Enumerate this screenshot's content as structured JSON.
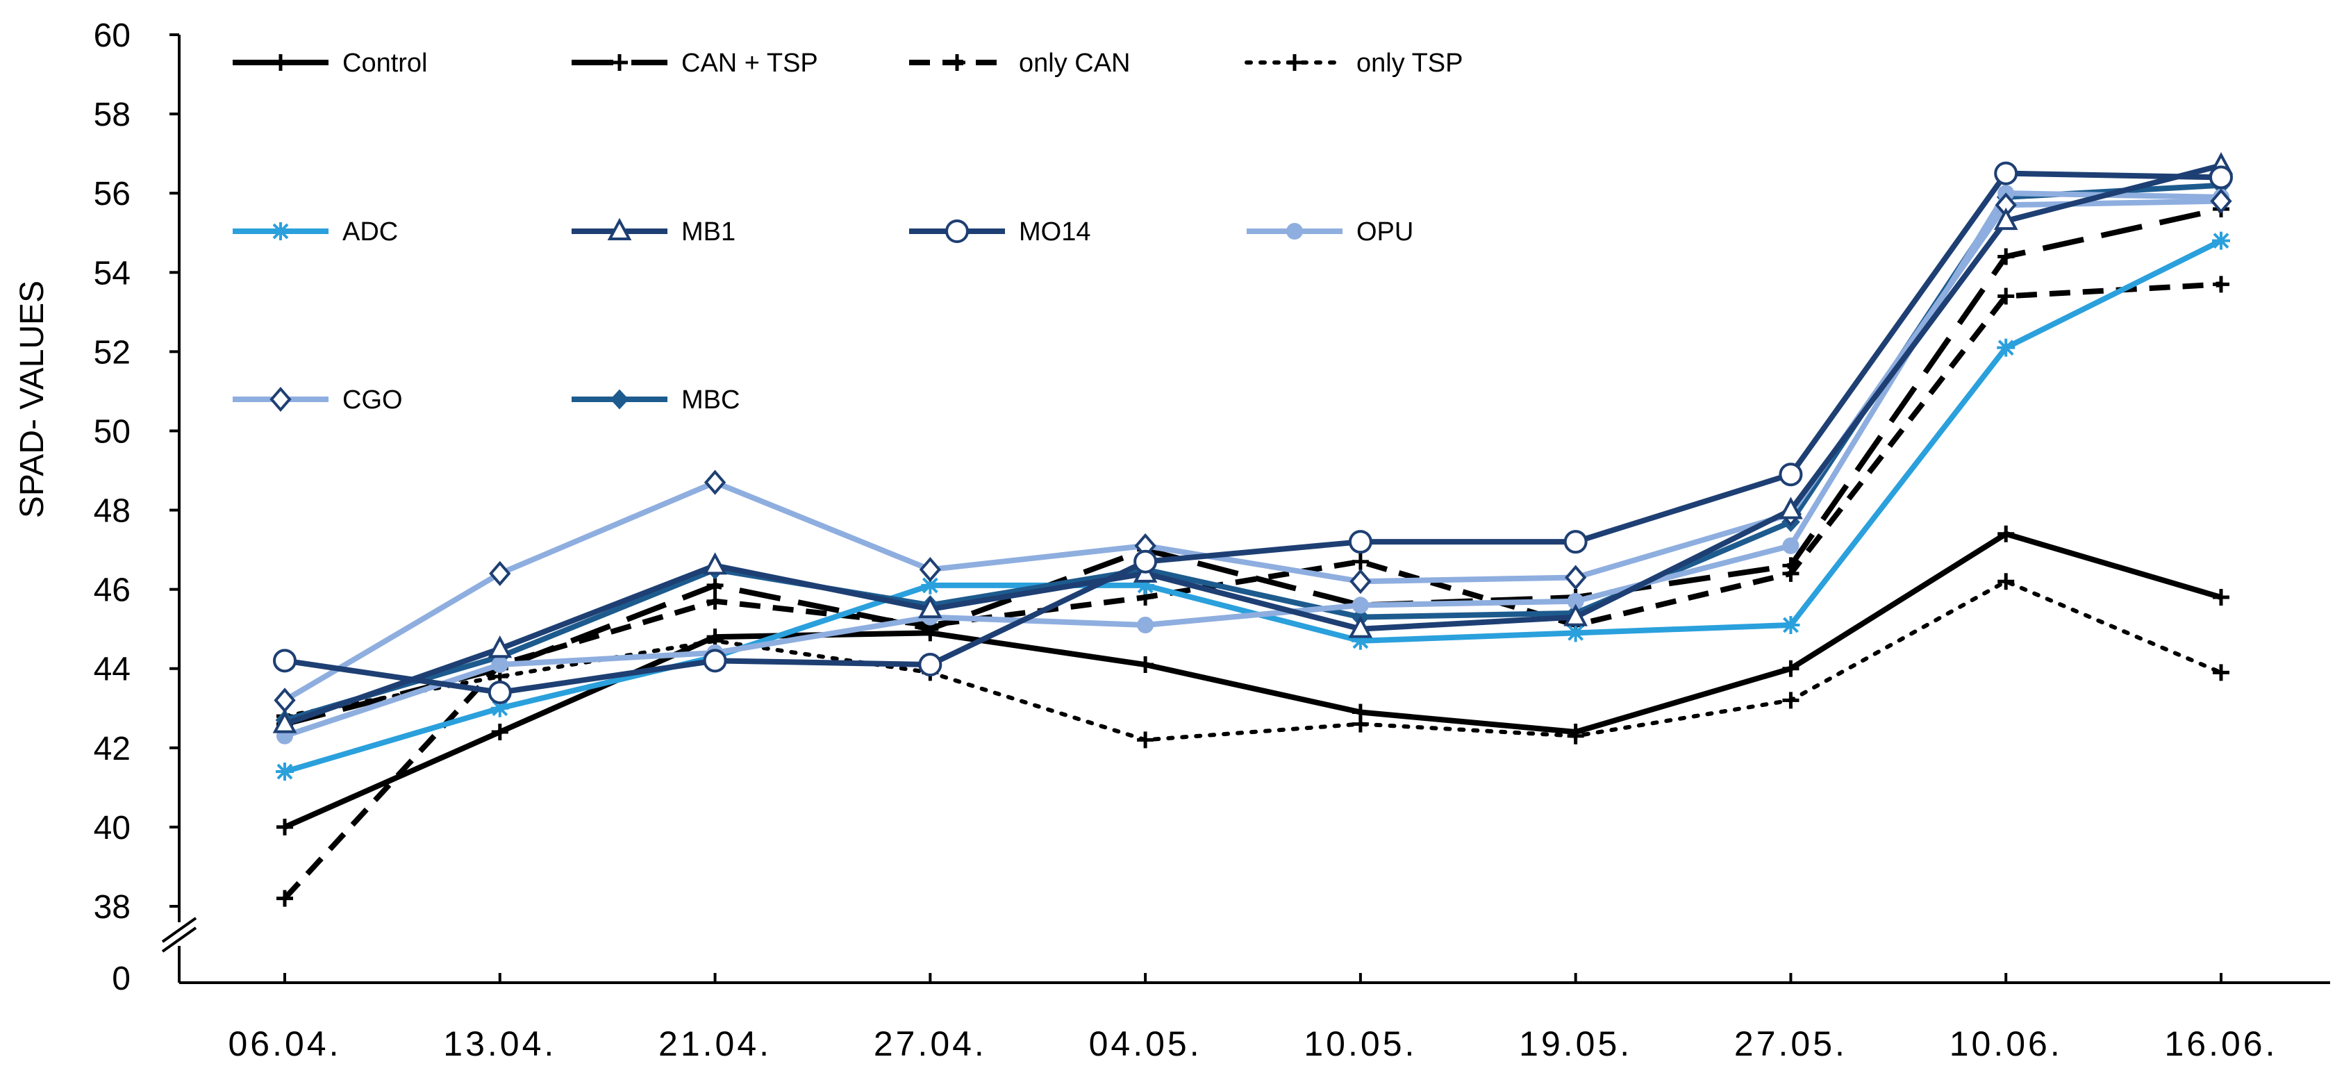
{
  "chart_data": {
    "type": "line",
    "title": "",
    "xlabel": "",
    "ylabel": "SPAD- VALUES",
    "ylim": [
      38,
      60
    ],
    "ytick_labels": [
      "60",
      "58",
      "56",
      "54",
      "52",
      "50",
      "48",
      "46",
      "44",
      "42",
      "40",
      "38",
      "0"
    ],
    "y_break": true,
    "grid": false,
    "legend_position": "top",
    "categories": [
      "06.04.",
      "13.04.",
      "21.04.",
      "27.04.",
      "04.05.",
      "10.05.",
      "19.05.",
      "27.05.",
      "10.06.",
      "16.06."
    ],
    "series": [
      {
        "name": "Control",
        "color": "#000000",
        "dash": "solid",
        "marker": "plus",
        "values": [
          40.0,
          42.4,
          44.8,
          44.9,
          44.1,
          42.9,
          42.4,
          44.0,
          47.4,
          45.8
        ]
      },
      {
        "name": "CAN + TSP",
        "color": "#000000",
        "dash": "longdash",
        "marker": "plus",
        "values": [
          42.6,
          44.0,
          46.1,
          45.0,
          47.0,
          45.6,
          45.8,
          46.6,
          54.4,
          55.6
        ]
      },
      {
        "name": "only CAN",
        "color": "#000000",
        "dash": "dash",
        "marker": "plus",
        "values": [
          38.2,
          44.1,
          45.7,
          45.1,
          45.8,
          46.7,
          45.1,
          46.4,
          53.4,
          53.7
        ]
      },
      {
        "name": "only TSP",
        "color": "#000000",
        "dash": "dot",
        "marker": "plus",
        "values": [
          42.8,
          43.8,
          44.7,
          43.9,
          42.2,
          42.6,
          42.3,
          43.2,
          46.2,
          43.9
        ]
      },
      {
        "name": "ADC",
        "color": "#2aa0dc",
        "dash": "solid",
        "marker": "asterisk",
        "values": [
          41.4,
          43.0,
          44.3,
          46.1,
          46.1,
          44.7,
          44.9,
          45.1,
          52.1,
          54.8
        ]
      },
      {
        "name": "MB1",
        "color": "#1e3f73",
        "dash": "solid",
        "marker": "triangle",
        "values": [
          42.6,
          44.5,
          46.6,
          45.5,
          46.4,
          45.0,
          45.3,
          48.0,
          55.3,
          56.7
        ]
      },
      {
        "name": "MO14",
        "color": "#1e3f73",
        "dash": "solid",
        "marker": "circle",
        "values": [
          44.2,
          43.4,
          44.2,
          44.1,
          46.7,
          47.2,
          47.2,
          48.9,
          56.5,
          56.4
        ]
      },
      {
        "name": "OPU",
        "color": "#8eaedf",
        "dash": "solid",
        "marker": "dot",
        "values": [
          42.3,
          44.1,
          44.4,
          45.3,
          45.1,
          45.6,
          45.7,
          47.1,
          56.0,
          55.9
        ]
      },
      {
        "name": "CGO",
        "color": "#8eaedf",
        "dash": "solid",
        "marker": "diamond",
        "values": [
          43.2,
          46.4,
          48.7,
          46.5,
          47.1,
          46.2,
          46.3,
          47.9,
          55.7,
          55.8
        ]
      },
      {
        "name": "MBC",
        "color": "#1d5b8e",
        "dash": "solid",
        "marker": "filled-diamond",
        "values": [
          42.7,
          44.3,
          46.5,
          45.6,
          46.5,
          45.3,
          45.4,
          47.7,
          55.9,
          56.2
        ]
      }
    ]
  }
}
